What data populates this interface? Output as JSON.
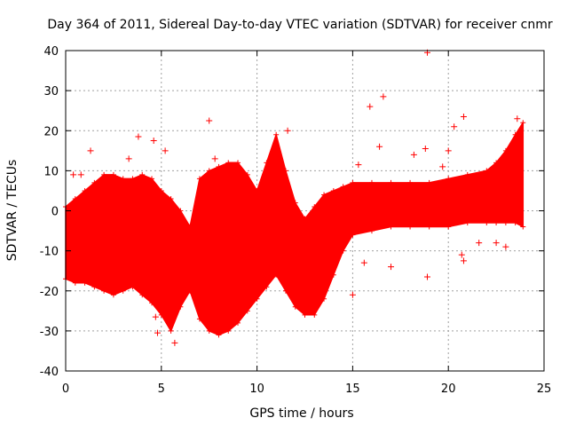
{
  "chart_data": {
    "type": "scatter",
    "title": "Day 364 of 2011, Sidereal Day-to-day VTEC variation (SDTVAR) for receiver cnmr",
    "xlabel": "GPS time / hours",
    "ylabel": "SDTVAR / TECUs",
    "xlim": [
      0,
      25
    ],
    "ylim": [
      -40,
      40
    ],
    "xticks": [
      0,
      5,
      10,
      15,
      20,
      25
    ],
    "yticks": [
      -40,
      -30,
      -20,
      -10,
      0,
      10,
      20,
      30,
      40
    ],
    "grid": true,
    "marker": "+",
    "series_color": "#ff0000",
    "series": [
      {
        "name": "SDTVAR",
        "band": [
          {
            "x": 0.0,
            "lower": -17,
            "upper": 1
          },
          {
            "x": 0.5,
            "lower": -18,
            "upper": 3
          },
          {
            "x": 1.0,
            "lower": -18,
            "upper": 5
          },
          {
            "x": 1.5,
            "lower": -19,
            "upper": 7
          },
          {
            "x": 2.0,
            "lower": -20,
            "upper": 9
          },
          {
            "x": 2.5,
            "lower": -21,
            "upper": 9
          },
          {
            "x": 3.0,
            "lower": -20,
            "upper": 8
          },
          {
            "x": 3.5,
            "lower": -19,
            "upper": 8
          },
          {
            "x": 4.0,
            "lower": -21,
            "upper": 9
          },
          {
            "x": 4.5,
            "lower": -23,
            "upper": 8
          },
          {
            "x": 5.0,
            "lower": -26,
            "upper": 5
          },
          {
            "x": 5.5,
            "lower": -30,
            "upper": 3
          },
          {
            "x": 6.0,
            "lower": -24,
            "upper": 0
          },
          {
            "x": 6.5,
            "lower": -20,
            "upper": -4
          },
          {
            "x": 7.0,
            "lower": -27,
            "upper": 8
          },
          {
            "x": 7.5,
            "lower": -30,
            "upper": 10
          },
          {
            "x": 8.0,
            "lower": -31,
            "upper": 11
          },
          {
            "x": 8.5,
            "lower": -30,
            "upper": 12
          },
          {
            "x": 9.0,
            "lower": -28,
            "upper": 12
          },
          {
            "x": 9.5,
            "lower": -25,
            "upper": 9
          },
          {
            "x": 10.0,
            "lower": -22,
            "upper": 5
          },
          {
            "x": 10.5,
            "lower": -19,
            "upper": 12
          },
          {
            "x": 11.0,
            "lower": -16,
            "upper": 19
          },
          {
            "x": 11.5,
            "lower": -20,
            "upper": 10
          },
          {
            "x": 12.0,
            "lower": -24,
            "upper": 2
          },
          {
            "x": 12.5,
            "lower": -26,
            "upper": -2
          },
          {
            "x": 13.0,
            "lower": -26,
            "upper": 1
          },
          {
            "x": 13.5,
            "lower": -22,
            "upper": 4
          },
          {
            "x": 14.0,
            "lower": -16,
            "upper": 5
          },
          {
            "x": 14.5,
            "lower": -10,
            "upper": 6
          },
          {
            "x": 15.0,
            "lower": -6,
            "upper": 7
          },
          {
            "x": 16.0,
            "lower": -5,
            "upper": 7
          },
          {
            "x": 17.0,
            "lower": -4,
            "upper": 7
          },
          {
            "x": 18.0,
            "lower": -4,
            "upper": 7
          },
          {
            "x": 19.0,
            "lower": -4,
            "upper": 7
          },
          {
            "x": 20.0,
            "lower": -4,
            "upper": 8
          },
          {
            "x": 21.0,
            "lower": -3,
            "upper": 9
          },
          {
            "x": 22.0,
            "lower": -3,
            "upper": 10
          },
          {
            "x": 22.5,
            "lower": -3,
            "upper": 12
          },
          {
            "x": 23.0,
            "lower": -3,
            "upper": 15
          },
          {
            "x": 23.5,
            "lower": -3,
            "upper": 19
          },
          {
            "x": 23.9,
            "lower": -4,
            "upper": 22
          }
        ],
        "outliers": [
          {
            "x": 0.4,
            "y": 9
          },
          {
            "x": 0.8,
            "y": 9
          },
          {
            "x": 1.3,
            "y": 15
          },
          {
            "x": 3.3,
            "y": 13
          },
          {
            "x": 3.8,
            "y": 18.5
          },
          {
            "x": 4.6,
            "y": 17.5
          },
          {
            "x": 5.2,
            "y": 15
          },
          {
            "x": 4.7,
            "y": -26.5
          },
          {
            "x": 4.8,
            "y": -30.5
          },
          {
            "x": 5.7,
            "y": -33
          },
          {
            "x": 7.5,
            "y": 22.5
          },
          {
            "x": 7.8,
            "y": 13
          },
          {
            "x": 8.1,
            "y": -29.5
          },
          {
            "x": 11.6,
            "y": 20
          },
          {
            "x": 15.0,
            "y": -21
          },
          {
            "x": 15.3,
            "y": 11.5
          },
          {
            "x": 15.6,
            "y": -13
          },
          {
            "x": 15.9,
            "y": 26
          },
          {
            "x": 16.4,
            "y": 16
          },
          {
            "x": 16.6,
            "y": 28.5
          },
          {
            "x": 17.0,
            "y": -14
          },
          {
            "x": 18.2,
            "y": 14
          },
          {
            "x": 18.8,
            "y": 15.5
          },
          {
            "x": 18.9,
            "y": 39.5
          },
          {
            "x": 18.9,
            "y": -16.5
          },
          {
            "x": 19.7,
            "y": 11
          },
          {
            "x": 20.0,
            "y": 15
          },
          {
            "x": 20.3,
            "y": 21
          },
          {
            "x": 20.7,
            "y": -11
          },
          {
            "x": 20.8,
            "y": 23.5
          },
          {
            "x": 20.8,
            "y": -12.5
          },
          {
            "x": 21.6,
            "y": -8
          },
          {
            "x": 22.5,
            "y": -8
          },
          {
            "x": 23.0,
            "y": -9
          },
          {
            "x": 23.6,
            "y": 23
          }
        ]
      }
    ]
  }
}
